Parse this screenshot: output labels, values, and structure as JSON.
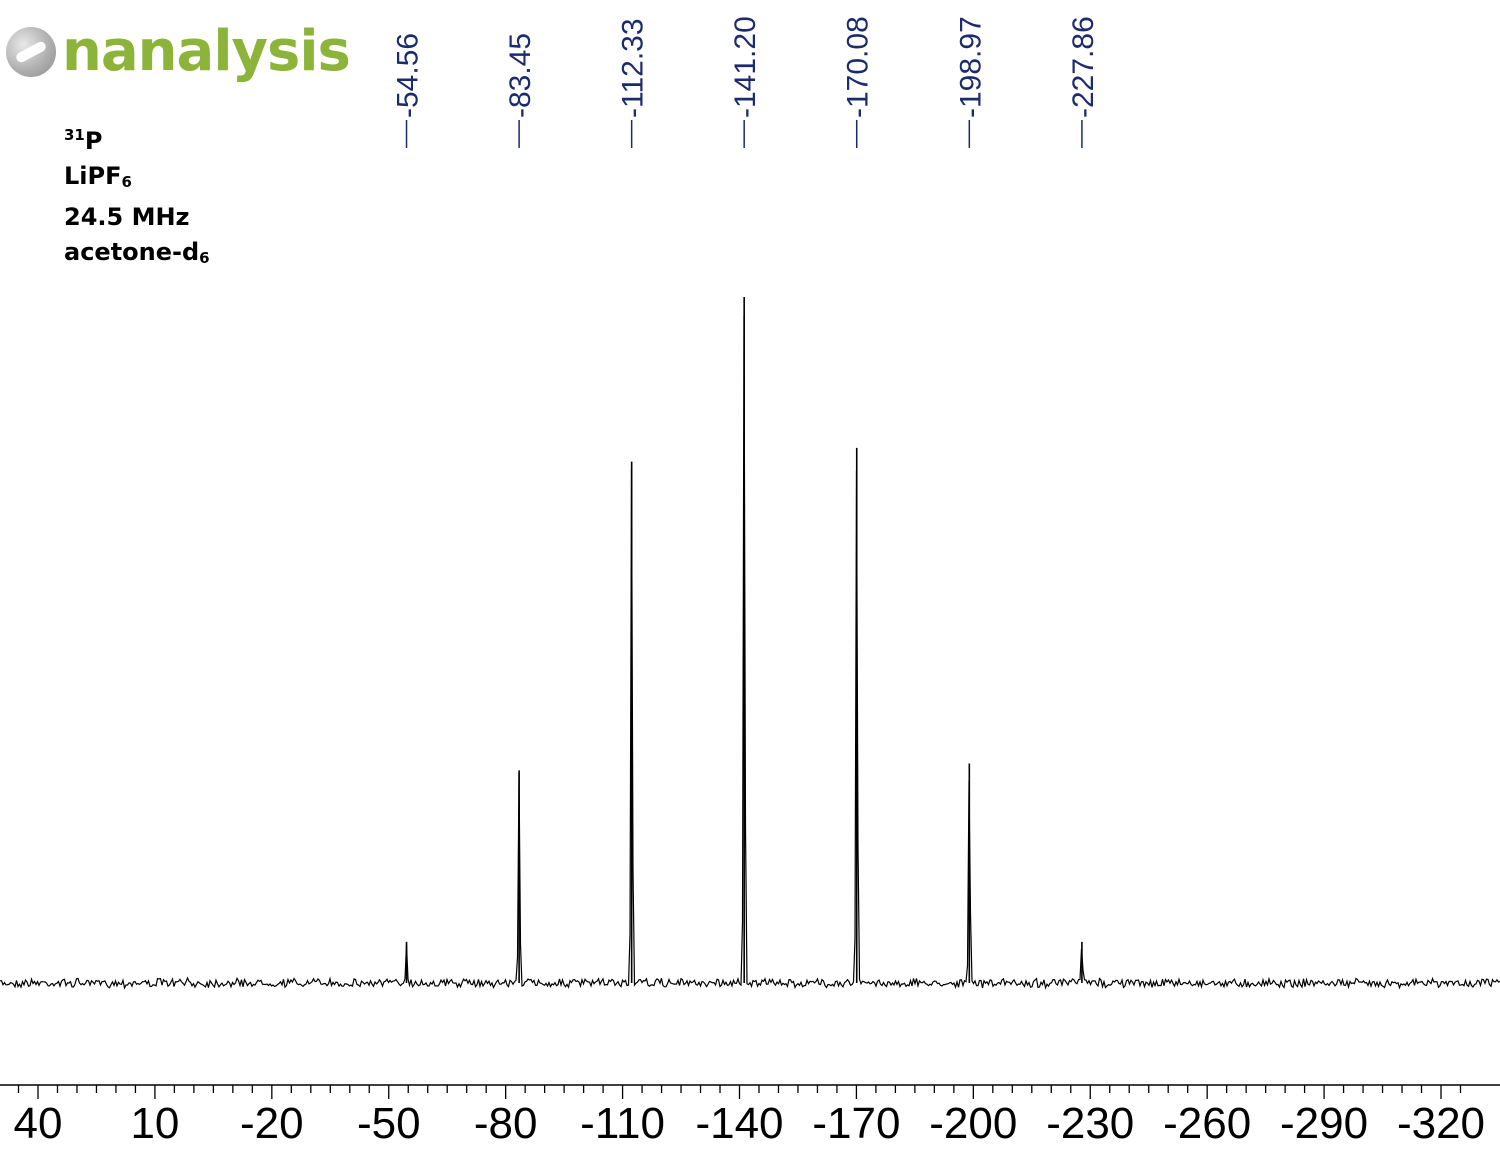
{
  "logo": {
    "text": "nanalysis",
    "color": "#8cb43a"
  },
  "meta": {
    "nucleus_mass": "31",
    "nucleus_symbol": "P",
    "compound_main": "LiPF",
    "compound_sub": "6",
    "frequency": "24.5 MHz",
    "solvent_main": "acetone-d",
    "solvent_sub": "6"
  },
  "chart_data": {
    "type": "line",
    "title": "",
    "xlabel": "",
    "ylabel": "",
    "x_reversed": true,
    "xlim": [
      45,
      -320
    ],
    "x_ticks": [
      40,
      10,
      -20,
      -50,
      -80,
      -110,
      -140,
      -170,
      -200,
      -230,
      -260,
      -290,
      -320
    ],
    "x_tick_labels": [
      "40",
      "10",
      "-20",
      "-50",
      "-80",
      "-110",
      "-140",
      "-170",
      "-200",
      "-230",
      "-260",
      "-290",
      "-320"
    ],
    "minor_tick_step": 5,
    "grid": false,
    "legend": "none",
    "line_color": "#000000",
    "label_color": "#1c2b6e",
    "peaks": [
      {
        "shift": -54.56,
        "label": "-54.56",
        "intensity": 0.06
      },
      {
        "shift": -83.45,
        "label": "-83.45",
        "intensity": 0.31
      },
      {
        "shift": -112.33,
        "label": "-112.33",
        "intensity": 0.76
      },
      {
        "shift": -141.2,
        "label": "-141.20",
        "intensity": 1.0
      },
      {
        "shift": -170.08,
        "label": "-170.08",
        "intensity": 0.78
      },
      {
        "shift": -198.97,
        "label": "-198.97",
        "intensity": 0.32
      },
      {
        "shift": -227.86,
        "label": "-227.86",
        "intensity": 0.06
      }
    ]
  }
}
